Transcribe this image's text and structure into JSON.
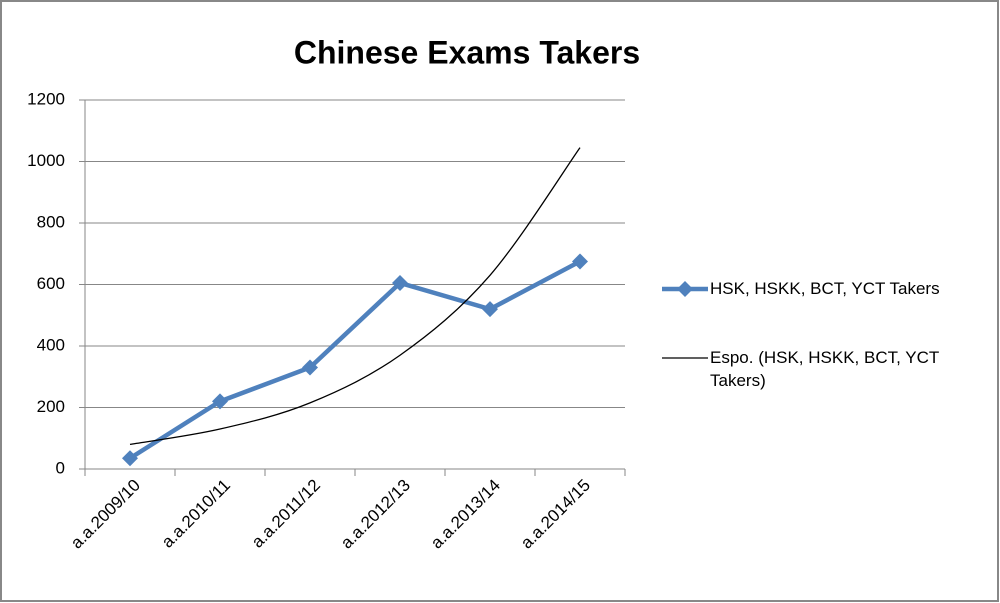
{
  "chart_data": {
    "type": "line",
    "title": "Chinese Exams Takers",
    "categories": [
      "a.a.2009/10",
      "a.a.2010/11",
      "a.a.2011/12",
      "a.a.2012/13",
      "a.a.2013/14",
      "a.a.2014/15"
    ],
    "series": [
      {
        "name": "HSK, HSKK, BCT, YCT Takers",
        "color": "#4f81bd",
        "values": [
          35,
          220,
          330,
          605,
          520,
          675
        ],
        "marker": "diamond"
      },
      {
        "name": "Espo. (HSK, HSKK, BCT, YCT Takers)",
        "color": "#000000",
        "values": [
          80,
          130,
          215,
          370,
          630,
          1045
        ],
        "marker": "none"
      }
    ],
    "ylim": [
      0,
      1200
    ],
    "yticks": [
      0,
      200,
      400,
      600,
      800,
      1000,
      1200
    ],
    "grid": true,
    "legend": "right"
  }
}
